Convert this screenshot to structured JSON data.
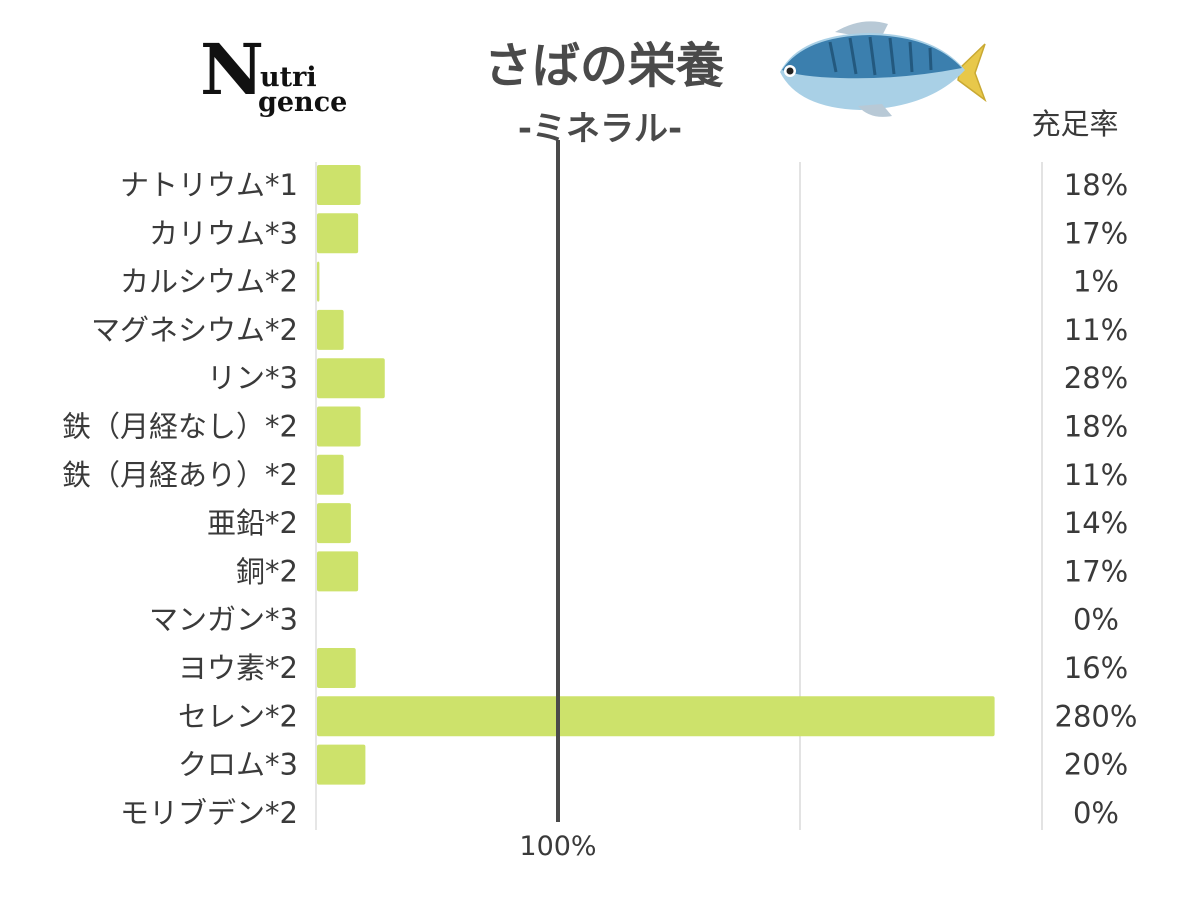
{
  "header": {
    "logo_big": "N",
    "logo_line1": "utri",
    "logo_line2": "gence",
    "title": "さばの栄養",
    "subtitle": "-ミネラル-",
    "value_column_header": "充足率"
  },
  "colors": {
    "bar": "#cde26b",
    "reference_line": "#4a4a4a",
    "grid": "#e3e3e3",
    "text": "#3a3a3a"
  },
  "icons": {
    "fish": "mackerel-icon"
  },
  "chart_data": {
    "type": "bar",
    "orientation": "horizontal",
    "categories": [
      "ナトリウム*1",
      "カリウム*3",
      "カルシウム*2",
      "マグネシウム*2",
      "リン*3",
      "鉄（月経なし）*2",
      "鉄（月経あり）*2",
      "亜鉛*2",
      "銅*2",
      "マンガン*3",
      "ヨウ素*2",
      "セレン*2",
      "クロム*3",
      "モリブデン*2"
    ],
    "values": [
      18,
      17,
      1,
      11,
      28,
      18,
      11,
      14,
      17,
      0,
      16,
      280,
      20,
      0
    ],
    "value_labels": [
      "18%",
      "17%",
      "1%",
      "11%",
      "28%",
      "18%",
      "11%",
      "14%",
      "17%",
      "0%",
      "16%",
      "280%",
      "20%",
      "0%"
    ],
    "xlim": [
      0,
      300
    ],
    "reference_line": {
      "value": 100,
      "label": "100%"
    },
    "grid_lines": [
      200,
      300
    ],
    "unit": "%"
  }
}
